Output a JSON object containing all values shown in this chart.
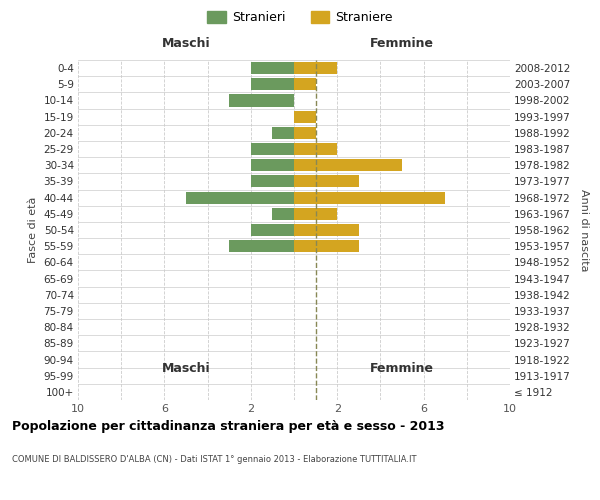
{
  "age_groups": [
    "100+",
    "95-99",
    "90-94",
    "85-89",
    "80-84",
    "75-79",
    "70-74",
    "65-69",
    "60-64",
    "55-59",
    "50-54",
    "45-49",
    "40-44",
    "35-39",
    "30-34",
    "25-29",
    "20-24",
    "15-19",
    "10-14",
    "5-9",
    "0-4"
  ],
  "birth_years": [
    "≤ 1912",
    "1913-1917",
    "1918-1922",
    "1923-1927",
    "1928-1932",
    "1933-1937",
    "1938-1942",
    "1943-1947",
    "1948-1952",
    "1953-1957",
    "1958-1962",
    "1963-1967",
    "1968-1972",
    "1973-1977",
    "1978-1982",
    "1983-1987",
    "1988-1992",
    "1993-1997",
    "1998-2002",
    "2003-2007",
    "2008-2012"
  ],
  "maschi": [
    0,
    0,
    0,
    0,
    0,
    0,
    0,
    0,
    0,
    3,
    2,
    1,
    5,
    2,
    2,
    2,
    1,
    0,
    3,
    2,
    2
  ],
  "femmine": [
    0,
    0,
    0,
    0,
    0,
    0,
    0,
    0,
    0,
    3,
    3,
    2,
    7,
    3,
    5,
    2,
    1,
    1,
    0,
    1,
    2
  ],
  "color_maschi": "#6b9a5e",
  "color_femmine": "#d4a520",
  "title": "Popolazione per cittadinanza straniera per età e sesso - 2013",
  "subtitle": "COMUNE DI BALDISSERO D'ALBA (CN) - Dati ISTAT 1° gennaio 2013 - Elaborazione TUTTITALIA.IT",
  "label_maschi": "Stranieri",
  "label_femmine": "Straniere",
  "xlabel_left": "Maschi",
  "xlabel_right": "Femmine",
  "ylabel_left": "Fasce di età",
  "ylabel_right": "Anni di nascita",
  "background_color": "#ffffff",
  "grid_color": "#cccccc",
  "dashed_line_color": "#888855"
}
